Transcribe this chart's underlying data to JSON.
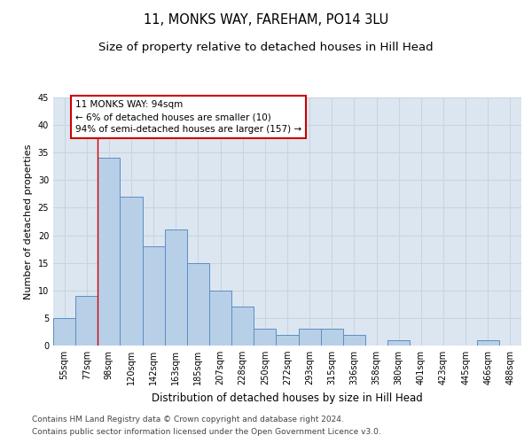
{
  "title1": "11, MONKS WAY, FAREHAM, PO14 3LU",
  "title2": "Size of property relative to detached houses in Hill Head",
  "xlabel": "Distribution of detached houses by size in Hill Head",
  "ylabel": "Number of detached properties",
  "categories": [
    "55sqm",
    "77sqm",
    "98sqm",
    "120sqm",
    "142sqm",
    "163sqm",
    "185sqm",
    "207sqm",
    "228sqm",
    "250sqm",
    "272sqm",
    "293sqm",
    "315sqm",
    "336sqm",
    "358sqm",
    "380sqm",
    "401sqm",
    "423sqm",
    "445sqm",
    "466sqm",
    "488sqm"
  ],
  "values": [
    5,
    9,
    34,
    27,
    18,
    21,
    15,
    10,
    7,
    3,
    2,
    3,
    3,
    2,
    0,
    1,
    0,
    0,
    0,
    1,
    0
  ],
  "bar_color": "#b8cfe8",
  "bar_edge_color": "#5b8ec4",
  "annotation_text": "11 MONKS WAY: 94sqm\n← 6% of detached houses are smaller (10)\n94% of semi-detached houses are larger (157) →",
  "annotation_box_color": "#ffffff",
  "annotation_box_edge": "#cc0000",
  "property_line_color": "#cc0000",
  "ylim": [
    0,
    45
  ],
  "yticks": [
    0,
    5,
    10,
    15,
    20,
    25,
    30,
    35,
    40,
    45
  ],
  "grid_color": "#c8d4e0",
  "bg_color": "#dce6f0",
  "footer1": "Contains HM Land Registry data © Crown copyright and database right 2024.",
  "footer2": "Contains public sector information licensed under the Open Government Licence v3.0.",
  "title1_fontsize": 10.5,
  "title2_fontsize": 9.5,
  "xlabel_fontsize": 8.5,
  "ylabel_fontsize": 8,
  "tick_fontsize": 7,
  "footer_fontsize": 6.5,
  "annotation_fontsize": 7.5
}
